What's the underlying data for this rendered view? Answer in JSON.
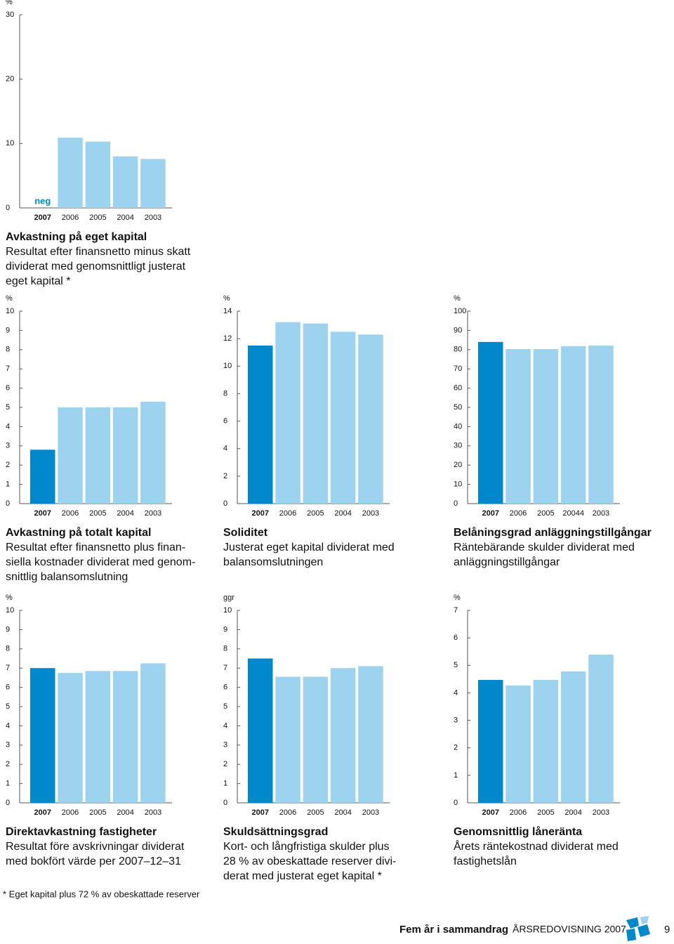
{
  "chart_data": [
    {
      "type": "bar",
      "title": "Avkastning på eget kapital",
      "description": [
        "Resultat efter finansnetto minus skatt",
        "dividerat med genomsnittligt justerat",
        "eget kapital *"
      ],
      "y_unit": "%",
      "categories": [
        "2007",
        "2006",
        "2005",
        "2004",
        "2003"
      ],
      "values": [
        null,
        10.9,
        10.3,
        8.0,
        7.6
      ],
      "value_labels": [
        "neg",
        null,
        null,
        null,
        null
      ],
      "colors": [
        "#0088cc",
        "#9dd3ee",
        "#9dd3ee",
        "#9dd3ee",
        "#9dd3ee"
      ],
      "ylim": [
        0,
        30
      ],
      "yticks": [
        0,
        10,
        20,
        30
      ]
    },
    {
      "type": "bar",
      "title": "Avkastning på totalt kapital",
      "description": [
        "Resultat efter finansnetto plus finan-",
        "siella kostnader dividerat med genom-",
        "snittlig balansomslutning"
      ],
      "y_unit": "%",
      "categories": [
        "2007",
        "2006",
        "2005",
        "2004",
        "2003"
      ],
      "values": [
        2.8,
        5.0,
        5.0,
        5.0,
        5.3
      ],
      "colors": [
        "#0088cc",
        "#9dd3ee",
        "#9dd3ee",
        "#9dd3ee",
        "#9dd3ee"
      ],
      "ylim": [
        0,
        10
      ],
      "yticks": [
        0,
        1,
        2,
        3,
        4,
        5,
        6,
        7,
        8,
        9,
        10
      ]
    },
    {
      "type": "bar",
      "title": "Soliditet",
      "description": [
        "Justerat eget kapital dividerat med",
        "balansomslutningen"
      ],
      "y_unit": "%",
      "categories": [
        "2007",
        "2006",
        "2005",
        "2004",
        "2003"
      ],
      "values": [
        11.5,
        13.2,
        13.1,
        12.5,
        12.3
      ],
      "colors": [
        "#0088cc",
        "#9dd3ee",
        "#9dd3ee",
        "#9dd3ee",
        "#9dd3ee"
      ],
      "ylim": [
        0,
        14
      ],
      "yticks": [
        0,
        2,
        4,
        6,
        8,
        10,
        12,
        14
      ]
    },
    {
      "type": "bar",
      "title": "Belåningsgrad anläggningstillgångar",
      "description": [
        "Räntebärande skulder dividerat med",
        "anläggningstillgångar"
      ],
      "y_unit": "%",
      "categories": [
        "2007",
        "2006",
        "2005",
        "20044",
        "2003"
      ],
      "values": [
        84,
        80.3,
        80.3,
        81.8,
        82.1
      ],
      "colors": [
        "#0088cc",
        "#9dd3ee",
        "#9dd3ee",
        "#9dd3ee",
        "#9dd3ee"
      ],
      "ylim": [
        0,
        100
      ],
      "yticks": [
        0,
        10,
        20,
        30,
        40,
        50,
        60,
        70,
        80,
        90,
        100
      ]
    },
    {
      "type": "bar",
      "title": "Direktavkastning fastigheter",
      "description": [
        "Resultat före avskrivningar dividerat",
        "med bokfört värde per 2007–12–31"
      ],
      "y_unit": "%",
      "categories": [
        "2007",
        "2006",
        "2005",
        "2004",
        "2003"
      ],
      "values": [
        7.0,
        6.75,
        6.85,
        6.85,
        7.25
      ],
      "colors": [
        "#0088cc",
        "#9dd3ee",
        "#9dd3ee",
        "#9dd3ee",
        "#9dd3ee"
      ],
      "ylim": [
        0,
        10
      ],
      "yticks": [
        0,
        1,
        2,
        3,
        4,
        5,
        6,
        7,
        8,
        9,
        10
      ]
    },
    {
      "type": "bar",
      "title": "Skuldsättningsgrad",
      "description": [
        "Kort- och långfristiga skulder plus",
        "28 % av obeskattade reserver divi-",
        "derat med justerat eget kapital *"
      ],
      "y_unit": "ggr",
      "categories": [
        "2007",
        "2006",
        "2005",
        "2004",
        "2003"
      ],
      "values": [
        7.5,
        6.55,
        6.55,
        7.0,
        7.1
      ],
      "colors": [
        "#0088cc",
        "#9dd3ee",
        "#9dd3ee",
        "#9dd3ee",
        "#9dd3ee"
      ],
      "ylim": [
        0,
        10
      ],
      "yticks": [
        0,
        1,
        2,
        3,
        4,
        5,
        6,
        7,
        8,
        9,
        10
      ]
    },
    {
      "type": "bar",
      "title": "Genomsnittlig låneränta",
      "description": [
        "Årets räntekostnad dividerat med",
        "fastighetslån"
      ],
      "y_unit": "%",
      "categories": [
        "2007",
        "2006",
        "2005",
        "2004",
        "2003"
      ],
      "values": [
        4.47,
        4.27,
        4.47,
        4.78,
        5.39
      ],
      "colors": [
        "#0088cc",
        "#9dd3ee",
        "#9dd3ee",
        "#9dd3ee",
        "#9dd3ee"
      ],
      "ylim": [
        0,
        7
      ],
      "yticks": [
        0,
        1,
        2,
        3,
        4,
        5,
        6,
        7
      ]
    }
  ],
  "footnote": "* Eget kapital plus 72 % av obeskattade reserver",
  "footer": {
    "section": "Fem år i sammandrag",
    "publication": "ÅRSREDOVISNING 2007",
    "page": "9"
  }
}
